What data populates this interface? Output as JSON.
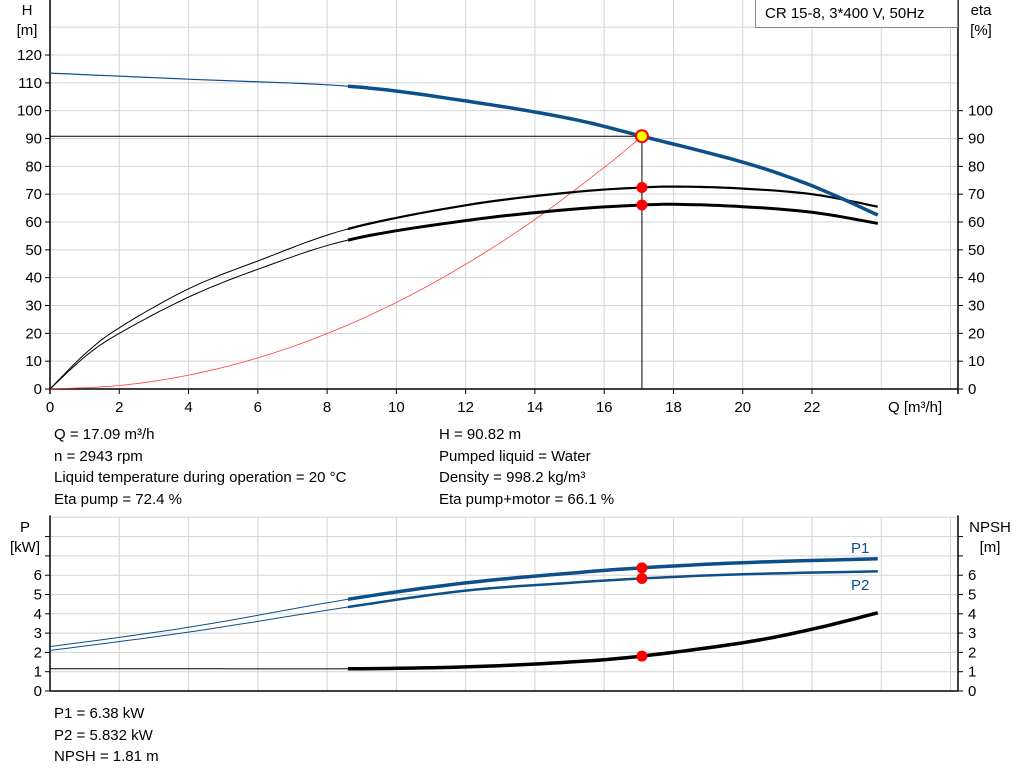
{
  "colors": {
    "head": "#0d4f8b",
    "eta": "#000000",
    "system": "#ff4040",
    "point": "#ff0000",
    "duty_point": "#ffff00",
    "power": "#0d4f8b",
    "npsh": "#000000",
    "grid": "#d3d3d3"
  },
  "chart_data": [
    {
      "type": "line",
      "title": "CR 15-8, 3*400 V, 50Hz",
      "xlabel": "Q [m³/h]",
      "ylabel": "H",
      "ylabel_unit": "[m]",
      "y2label": "eta",
      "y2label_unit": "[%]",
      "xlim": [
        0,
        26.2
      ],
      "ylim": [
        0,
        140
      ],
      "y2lim": [
        0,
        140
      ],
      "x_ticks": [
        "0",
        "2",
        "4",
        "6",
        "8",
        "10",
        "12",
        "14",
        "16",
        "18",
        "20",
        "22"
      ],
      "y_ticks": [
        "0",
        "10",
        "20",
        "30",
        "40",
        "50",
        "60",
        "70",
        "80",
        "90",
        "100",
        "110",
        "120"
      ],
      "y2_ticks": [
        "0",
        "10",
        "20",
        "30",
        "40",
        "50",
        "60",
        "70",
        "80",
        "90",
        "100"
      ],
      "grid": true,
      "series": [
        {
          "id": "head",
          "x": [
            0,
            4,
            8.6,
            12,
            15,
            17.09,
            20,
            22,
            23.9
          ],
          "y": [
            113.5,
            111.3,
            108.8,
            103.5,
            97.2,
            90.82,
            81.5,
            73,
            62.5
          ]
        },
        {
          "id": "eta_pump",
          "x": [
            0,
            1,
            2,
            4,
            6,
            8.6,
            12,
            15,
            17.09,
            18.3,
            20,
            22,
            23.9
          ],
          "y": [
            0,
            12.5,
            22,
            36,
            46,
            57.5,
            66,
            70.6,
            72.4,
            72.7,
            72,
            70,
            65.5
          ]
        },
        {
          "id": "eta_pump_motor",
          "x": [
            0,
            1,
            2,
            4,
            6,
            8.6,
            12,
            15,
            17.09,
            18.3,
            20,
            22,
            23.9
          ],
          "y": [
            0,
            11.5,
            20,
            33,
            43,
            53.5,
            60.5,
            64.5,
            66.1,
            66.3,
            65.5,
            63.5,
            59.5
          ]
        },
        {
          "id": "system_curve",
          "x": [
            0,
            2,
            4,
            6,
            8,
            10,
            12,
            14,
            16,
            17.09
          ],
          "y": [
            0,
            1.24,
            4.98,
            11.19,
            19.9,
            31.1,
            44.8,
            60.9,
            79.6,
            90.82
          ]
        }
      ],
      "duty_point": {
        "Q": 17.09,
        "H": 90.82,
        "eta_pump": 72.4,
        "eta_pump_motor": 66.1
      }
    },
    {
      "type": "line",
      "ylabel": "P",
      "ylabel_unit": "[kW]",
      "y2label": "NPSH",
      "y2label_unit": "[m]",
      "xlim": [
        0,
        26.2
      ],
      "ylim": [
        0,
        9
      ],
      "y_ticks": [
        "0",
        "1",
        "2",
        "3",
        "4",
        "5",
        "6"
      ],
      "y2_ticks": [
        "0",
        "1",
        "2",
        "3",
        "4",
        "5",
        "6"
      ],
      "grid": true,
      "series": [
        {
          "id": "P1",
          "name": "P1",
          "x": [
            0,
            4,
            8.6,
            12,
            15,
            17.09,
            20,
            23.9
          ],
          "y": [
            2.3,
            3.3,
            4.75,
            5.6,
            6.1,
            6.38,
            6.65,
            6.85
          ]
        },
        {
          "id": "P2",
          "name": "P2",
          "x": [
            0,
            4,
            8.6,
            12,
            15,
            17.09,
            20,
            23.9
          ],
          "y": [
            2.1,
            3.05,
            4.35,
            5.2,
            5.6,
            5.832,
            6.05,
            6.2
          ]
        },
        {
          "id": "NPSH",
          "x": [
            0,
            4,
            8.6,
            12,
            15,
            17.09,
            20,
            22,
            23.9
          ],
          "y": [
            1.15,
            1.15,
            1.15,
            1.25,
            1.5,
            1.81,
            2.5,
            3.2,
            4.05
          ]
        }
      ],
      "duty_point": {
        "P1": 6.38,
        "P2": 5.832,
        "NPSH": 1.81
      }
    }
  ],
  "info_top_left": [
    "Q = 17.09 m³/h",
    "n = 2943 rpm",
    "Liquid temperature during operation = 20 °C",
    "Eta pump = 72.4 %"
  ],
  "info_top_right": [
    "H = 90.82 m",
    "Pumped liquid = Water",
    "Density = 998.2 kg/m³",
    "Eta pump+motor = 66.1 %"
  ],
  "info_bottom": [
    "P1 = 6.38 kW",
    "P2 = 5.832 kW",
    "NPSH = 1.81 m"
  ]
}
